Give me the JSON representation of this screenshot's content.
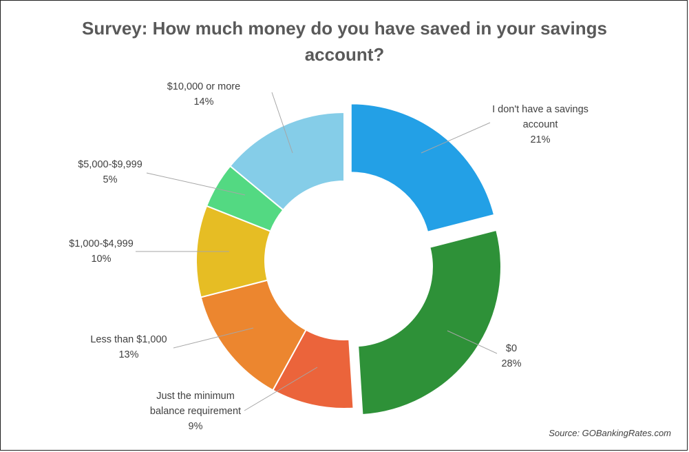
{
  "chart_data": {
    "type": "pie",
    "variant": "donut",
    "title": [
      "Survey: How much money do you have saved in your savings",
      "account?"
    ],
    "slices": [
      {
        "label": [
          "I don't have a savings",
          "account"
        ],
        "value": 21,
        "value_text": "21%",
        "color": "#23a0e6",
        "exploded": true
      },
      {
        "label": [
          "$0"
        ],
        "value": 28,
        "value_text": "28%",
        "color": "#2e9138",
        "exploded": true
      },
      {
        "label": [
          "Just the minimum",
          "balance requirement"
        ],
        "value": 9,
        "value_text": "9%",
        "color": "#eb643b",
        "exploded": false
      },
      {
        "label": [
          "Less than $1,000"
        ],
        "value": 13,
        "value_text": "13%",
        "color": "#ec862f",
        "exploded": false
      },
      {
        "label": [
          "$1,000-$4,999"
        ],
        "value": 10,
        "value_text": "10%",
        "color": "#e6bd24",
        "exploded": false
      },
      {
        "label": [
          "$5,000-$9,999"
        ],
        "value": 5,
        "value_text": "5%",
        "color": "#53d982",
        "exploded": false
      },
      {
        "label": [
          "$10,000 or more"
        ],
        "value": 14,
        "value_text": "14%",
        "color": "#85cde8",
        "exploded": false
      }
    ],
    "source": "Source: GOBankingRates.com"
  }
}
